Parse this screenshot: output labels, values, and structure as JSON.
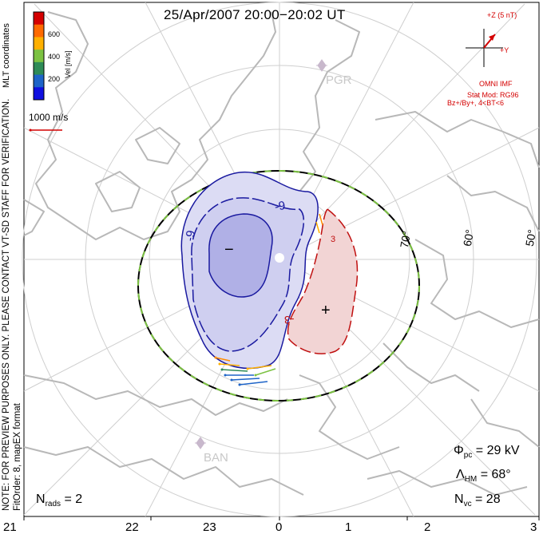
{
  "title": "25/Apr/2007 20:00−20:02 UT",
  "coord_label": "MLT coordinates",
  "colorbar": {
    "label": "Vel [m/s]",
    "ticks": [
      "600",
      "400",
      "200"
    ],
    "colors": [
      "#d40000",
      "#ff6a00",
      "#ffb000",
      "#7cc242",
      "#2e8b57",
      "#1e64c8",
      "#1010e0"
    ]
  },
  "scale_vector": "1000 m/s",
  "notice": "NOTE: FOR PREVIEW PURPOSES ONLY. PLEASE CONTACT VT-SD STAFF FOR VERIFICATION.",
  "fit_order": "FitOrder: 8, mapEX format",
  "imf": {
    "z_label": "+Z (5 nT)",
    "y_label": "+Y",
    "source": "OMNI IMF",
    "stat_mod": "Stat Mod: RG96",
    "condition": "Bz+/By+, 4<BT<6"
  },
  "stations": [
    "PGR",
    "BAN"
  ],
  "lat_labels": [
    "70°",
    "60°",
    "50°"
  ],
  "contour_labels": [
    "-9",
    "-9",
    "3",
    "-3"
  ],
  "cell_signs": [
    "−",
    "+"
  ],
  "stats": {
    "phi_pc": "= 29 kV",
    "lambda_hm": "= 68°",
    "n_vc": "= 28",
    "n_rads": "= 2"
  },
  "mlt_ticks": [
    "21",
    "22",
    "23",
    "0",
    "1",
    "2",
    "3"
  ],
  "colors": {
    "negative_cell": "#b3b3e8",
    "positive_cell": "#f0c8c8",
    "negative_contour": "#1a1aa0",
    "positive_contour": "#c01010",
    "boundary": "#7cc242",
    "grid": "#cccccc",
    "coast": "#b4b4b4"
  }
}
